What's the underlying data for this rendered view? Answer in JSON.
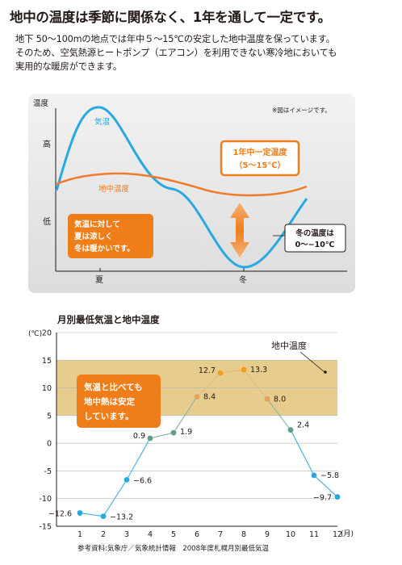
{
  "header": {
    "title": "地中の温度は季節に関係なく、1年を通して一定です。",
    "lines": [
      "地下 50～100mの地点では年中５～15℃の安定した地中温度を保っています。",
      "そのため、空気熱源ヒートポンプ（エアコン）を利用できない寒冷地においても",
      "実用的な暖房ができます。"
    ]
  },
  "concept": {
    "note": "※図はイメージです。",
    "y_axis_label": "温度",
    "y_high": "高",
    "y_low": "低",
    "x_summer": "夏",
    "x_winter": "冬",
    "air_label": "気温",
    "ground_label": "地中温度",
    "constant_box": [
      "1年中一定温度",
      "（5～15℃）"
    ],
    "compare_box": [
      "気温に対して",
      "夏は涼しく",
      "冬は暖かいです。"
    ],
    "winter_box": [
      "冬の温度は",
      "0～−10℃"
    ]
  },
  "chart_data": {
    "type": "line",
    "title": "月別最低気温と地中温度",
    "yunit": "(℃)",
    "xunit": "(月)",
    "x": [
      1,
      2,
      3,
      4,
      5,
      6,
      7,
      8,
      9,
      10,
      11,
      12
    ],
    "ylim": [
      -15,
      20
    ],
    "yticks": [
      -15,
      -10,
      -5,
      0,
      5,
      10,
      15,
      20
    ],
    "series": [
      {
        "values": [
          -12.6,
          -13.2,
          -6.6,
          0.9,
          1.9,
          8.4,
          12.7,
          13.3,
          8.0,
          2.4,
          -5.8,
          -9.7
        ],
        "labels": [
          "−12.6",
          "−13.2",
          "−6.6",
          "0.9",
          "1.9",
          "8.4",
          "12.7",
          "13.3",
          "8.0",
          "2.4",
          "−5.8",
          "−9.7"
        ]
      }
    ],
    "band": {
      "label": "地中温度",
      "range": [
        5,
        15
      ]
    },
    "callout": [
      "気温と比べても",
      "地中熱は安定",
      "しています。"
    ],
    "source": "参考資料:気象庁／気象統計情報　2008年度札幌月別最低気温",
    "colors": {
      "cold": "#27a8e0",
      "mild": "#5e9f86",
      "warm": "#e6a35a",
      "hot": "#f39c20",
      "band": "#e6cd8d",
      "orange": "#ef7d1a",
      "air_curve": "#29a9e1",
      "ground_curve": "#ee7d2b"
    }
  }
}
